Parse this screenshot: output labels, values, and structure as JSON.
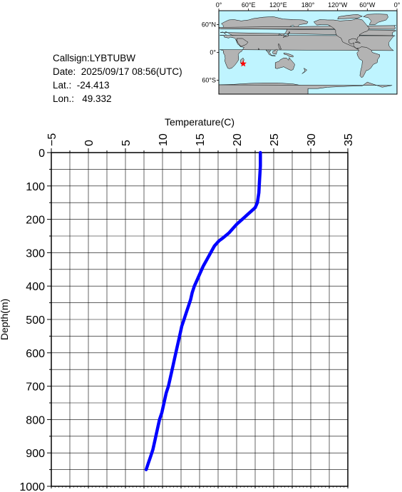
{
  "info": {
    "callsign": "Callsign:LYBTUBW",
    "date": "Date:  2025/09/17 08:56(UTC)",
    "lat": "Lat.:  -24.413",
    "lon": "Lon.:   49.332"
  },
  "map": {
    "lon_labels": [
      "0°",
      "60°E",
      "120°E",
      "180°",
      "120°W",
      "60°W",
      "0°"
    ],
    "lat_labels": [
      "60°N",
      "0°",
      "60°S"
    ],
    "marker": {
      "lat": -24.413,
      "lon": 49.332
    },
    "colors": {
      "ocean": "#bff4ff",
      "land": "#b3b3b3",
      "marker": "#ff0000"
    }
  },
  "chart_data": {
    "type": "line",
    "xlabel": "Temperature(C)",
    "ylabel": "Depth(m)",
    "xlim": [
      -5,
      35
    ],
    "ylim": [
      1000,
      0
    ],
    "x_ticks": [
      -5,
      0,
      5,
      10,
      15,
      20,
      25,
      30,
      35
    ],
    "y_ticks": [
      0,
      100,
      200,
      300,
      400,
      500,
      600,
      700,
      800,
      900,
      1000
    ],
    "grid": true,
    "series": [
      {
        "color": "#0000ff",
        "x": [
          23.2,
          23.2,
          23.1,
          23.0,
          22.8,
          22.5,
          22.0,
          21.5,
          21.0,
          20.5,
          20.0,
          19.6,
          19.0,
          18.2,
          17.6,
          17.0,
          16.5,
          16.0,
          15.5,
          15.1,
          14.7,
          14.3,
          14.0,
          13.8,
          13.5,
          13.2,
          12.9,
          12.6,
          12.4,
          12.2,
          12.0,
          11.8,
          11.6,
          11.4,
          11.2,
          11.0,
          10.8,
          10.5,
          10.2,
          9.9,
          9.6,
          9.3,
          9.0,
          8.7,
          8.4,
          8.1,
          7.8
        ],
        "y": [
          0,
          40,
          80,
          120,
          150,
          165,
          175,
          185,
          195,
          205,
          215,
          225,
          240,
          255,
          265,
          280,
          300,
          320,
          340,
          360,
          380,
          400,
          420,
          440,
          460,
          480,
          500,
          520,
          540,
          560,
          580,
          600,
          620,
          640,
          660,
          680,
          700,
          720,
          750,
          780,
          800,
          830,
          860,
          890,
          910,
          930,
          950
        ]
      }
    ]
  }
}
